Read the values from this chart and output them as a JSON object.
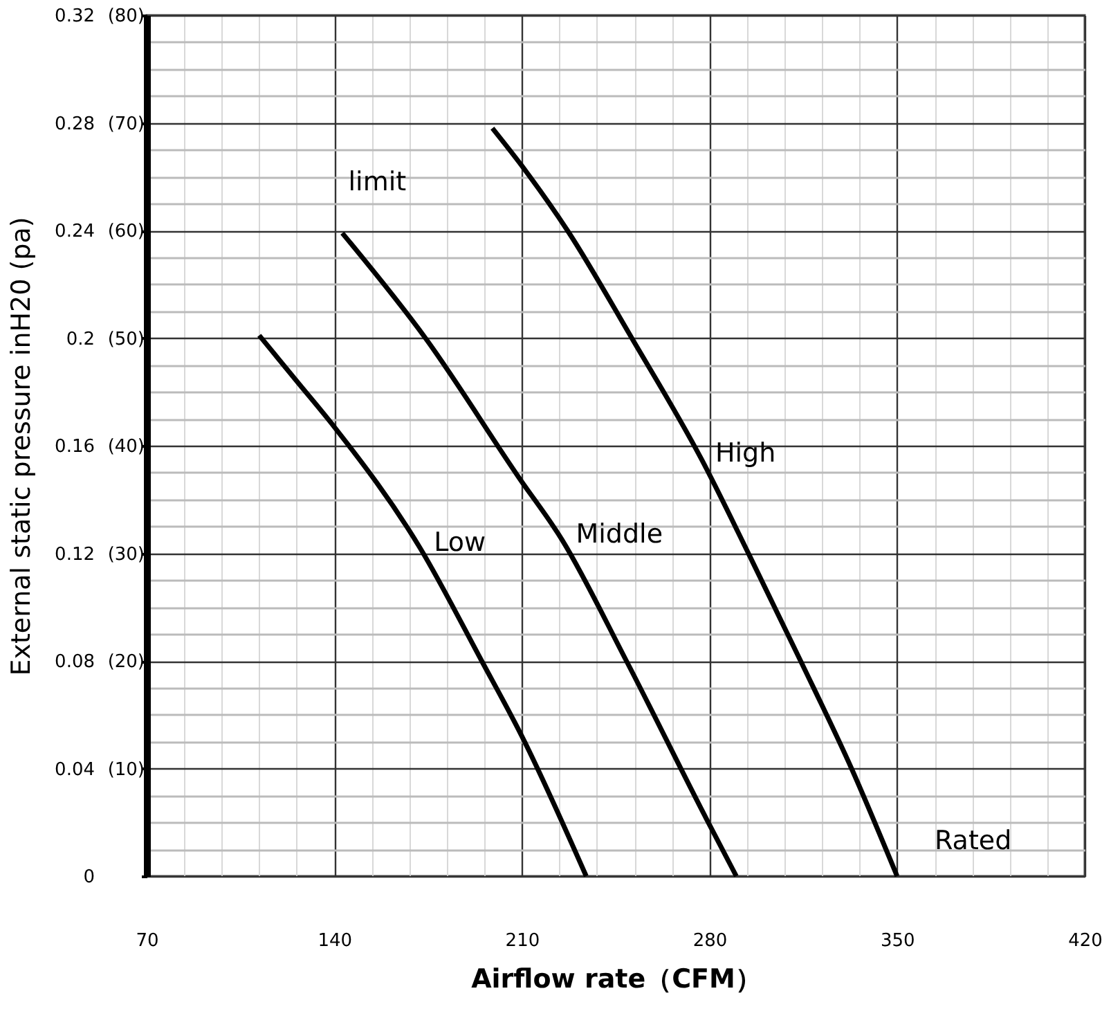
{
  "chart_data": {
    "type": "line",
    "xlabel": "Airflow rate（CFM）",
    "ylabel": "External  static pressure inH20 (pa)",
    "xlim": [
      70,
      420
    ],
    "xticks": [
      70,
      140,
      210,
      280,
      350,
      420
    ],
    "ylim": [
      0,
      0.32
    ],
    "yticks": [
      0,
      0.04,
      0.08,
      0.12,
      0.16,
      0.2,
      0.24,
      0.28,
      0.32
    ],
    "y2lim": [
      0,
      80
    ],
    "y2ticks": [
      {
        "value": 10,
        "label": "(10)"
      },
      {
        "value": 20,
        "label": "(20)"
      },
      {
        "value": 30,
        "label": "(30)"
      },
      {
        "value": 40,
        "label": "(40)"
      },
      {
        "value": 50,
        "label": "(50)"
      },
      {
        "value": 60,
        "label": "(60)"
      },
      {
        "value": 70,
        "label": "(70)"
      },
      {
        "value": 80,
        "label": "(80)"
      }
    ],
    "grid": true,
    "marker": "none",
    "line_style": "solid",
    "series": [
      {
        "name": "Low",
        "color": "#000000",
        "x": [
          112,
          126,
          140,
          172,
          195,
          210,
          234
        ],
        "values": [
          0.201,
          0.184,
          0.167,
          0.122,
          0.08,
          0.052,
          0
        ]
      },
      {
        "name": "Middle",
        "color": "#000000",
        "x": [
          143,
          174,
          209,
          225,
          249,
          279,
          290
        ],
        "values": [
          0.239,
          0.2,
          0.148,
          0.125,
          0.08,
          0.021,
          0
        ]
      },
      {
        "name": "High",
        "color": "#000000",
        "x": [
          199,
          210,
          227,
          251,
          277,
          295,
          314,
          333,
          350
        ],
        "values": [
          0.278,
          0.264,
          0.24,
          0.2,
          0.155,
          0.119,
          0.08,
          0.04,
          0
        ]
      }
    ],
    "annotations": [
      "limit",
      "Rated"
    ]
  }
}
